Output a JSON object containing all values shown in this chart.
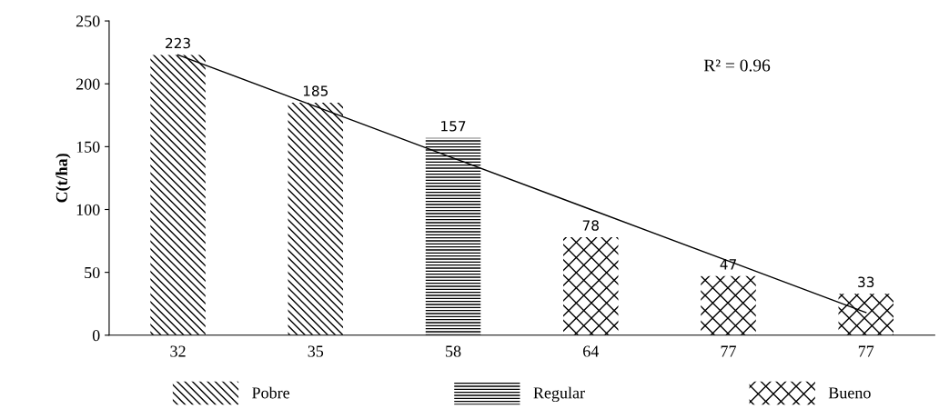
{
  "chart_data": {
    "type": "bar",
    "ylabel": "C(t/ha)",
    "categories": [
      "32",
      "35",
      "58",
      "64",
      "77",
      "77"
    ],
    "series": [
      {
        "name": "Pobre",
        "color": "#000000",
        "values": [
          223,
          185,
          null,
          null,
          null,
          null
        ],
        "value_labels": [
          "223",
          "185",
          null,
          null,
          null,
          null
        ]
      },
      {
        "name": "Regular",
        "color": "#000000",
        "values": [
          null,
          null,
          157,
          null,
          null,
          null
        ],
        "value_labels": [
          null,
          null,
          "157",
          null,
          null,
          null
        ]
      },
      {
        "name": "Bueno",
        "color": "#000000",
        "values": [
          null,
          null,
          null,
          78,
          47,
          33
        ],
        "value_labels": [
          null,
          null,
          null,
          "78",
          "47",
          "33"
        ]
      },
      {
        "type": "line",
        "color": "#000000",
        "values": [
          223,
          182,
          141,
          100,
          59,
          18
        ]
      }
    ],
    "ylim": [
      0,
      250
    ],
    "yticks": [
      0,
      50,
      100,
      150,
      200,
      250
    ],
    "grid": false,
    "legend": "bottom",
    "marker": "none",
    "line_style": "solid",
    "annotations": [
      "R² = 0.96"
    ]
  }
}
